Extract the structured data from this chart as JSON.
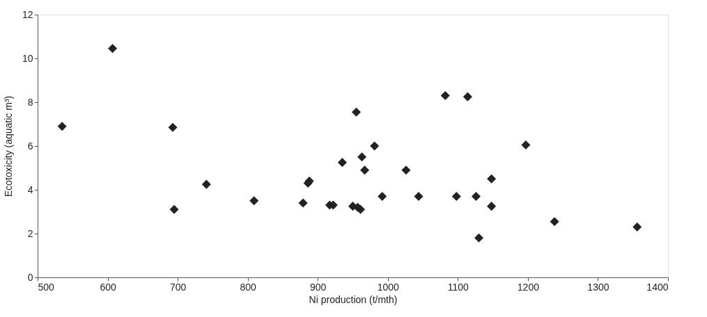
{
  "chart_data": {
    "type": "scatter",
    "xlabel": "Ni production (t/mth)",
    "ylabel": "Ecotoxicity (aquatic m³)",
    "x": [
      535,
      607,
      693,
      695,
      741,
      809,
      879,
      886,
      888,
      917,
      922,
      935,
      950,
      955,
      957,
      961,
      963,
      967,
      981,
      992,
      1026,
      1044,
      1082,
      1098,
      1114,
      1126,
      1130,
      1148,
      1148,
      1197,
      1238,
      1356
    ],
    "series": [
      {
        "color": "#222222",
        "values": [
          6.9,
          10.45,
          6.85,
          3.1,
          4.25,
          3.5,
          3.4,
          4.3,
          4.4,
          3.3,
          3.3,
          5.25,
          3.25,
          7.55,
          3.2,
          3.1,
          5.5,
          4.9,
          6.0,
          3.7,
          4.9,
          3.7,
          8.3,
          3.7,
          8.25,
          3.7,
          1.8,
          4.5,
          3.25,
          6.05,
          2.55,
          2.3
        ]
      }
    ],
    "xlim": [
      500,
      1400
    ],
    "xticks": [
      500,
      600,
      700,
      800,
      900,
      1000,
      1100,
      1200,
      1300,
      1400
    ],
    "ylim": [
      0,
      12
    ],
    "yticks": [
      0,
      2,
      4,
      6,
      8,
      10,
      12
    ],
    "grid": false,
    "marker": "diamond"
  }
}
